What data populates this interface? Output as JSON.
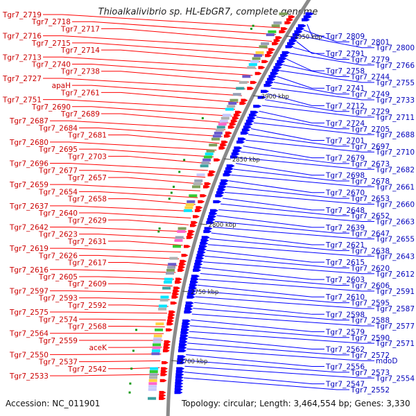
{
  "title": "Thioalkalivibrio sp. HL-EbGR7, complete genome",
  "footer": {
    "accession": "Accession: NC_011901",
    "summary": "Topology: circular; Length: 3,464,554 bp; Genes: 3,330"
  },
  "colors": {
    "forward": "#ff0000",
    "reverse": "#0000ff",
    "backbone": "#8a8a8a"
  },
  "scale_marks": [
    "2950 kbp",
    "2900 kbp",
    "2850 kbp",
    "2800 kbp",
    "2750 kbp",
    "2700 kbp"
  ],
  "labels_left": [
    "Tgr7_2719",
    "Tgr7_2718",
    "Tgr7_2717",
    "Tgr7_2716",
    "Tgr7_2715",
    "Tgr7_2714",
    "Tgr7_2713",
    "Tgr7_2740",
    "Tgr7_2738",
    "Tgr7_2727",
    "apaH",
    "Tgr7_2761",
    "Tgr7_2751",
    "Tgr7_2690",
    "Tgr7_2689",
    "Tgr7_2687",
    "Tgr7_2684",
    "Tgr7_2681",
    "Tgr7_2680",
    "Tgr7_2695",
    "Tgr7_2703",
    "Tgr7_2696",
    "Tgr7_2677",
    "Tgr7_2657",
    "Tgr7_2659",
    "Tgr7_2654",
    "Tgr7_2658",
    "Tgr7_2637",
    "Tgr7_2640",
    "Tgr7_2629",
    "Tgr7_2642",
    "Tgr7_2623",
    "Tgr7_2631",
    "Tgr7_2619",
    "Tgr7_2626",
    "Tgr7_2617",
    "Tgr7_2616",
    "Tgr7_2605",
    "Tgr7_2609",
    "Tgr7_2597",
    "Tgr7_2593",
    "Tgr7_2592",
    "Tgr7_2575",
    "Tgr7_2574",
    "Tgr7_2568",
    "Tgr7_2564",
    "Tgr7_2559",
    "aceK",
    "Tgr7_2550",
    "Tgr7_2537",
    "Tgr7_2542",
    "Tgr7_2533"
  ],
  "labels_right": [
    "Tgr7_2809",
    "Tgr7_2801",
    "Tgr7_2800",
    "Tgr7_2791",
    "Tgr7_2779",
    "Tgr7_2766",
    "Tgr7_2758",
    "Tgr7_2744",
    "Tgr7_2755",
    "Tgr7_2741",
    "Tgr7_2749",
    "Tgr7_2733",
    "Tgr7_2712",
    "Tgr7_2729",
    "Tgr7_2711",
    "Tgr7_2724",
    "Tgr7_2705",
    "Tgr7_2688",
    "Tgr7_2701",
    "Tgr7_2697",
    "Tgr7_2710",
    "Tgr7_2679",
    "Tgr7_2673",
    "Tgr7_2682",
    "Tgr7_2698",
    "Tgr7_2678",
    "Tgr7_2661",
    "Tgr7_2670",
    "Tgr7_2653",
    "Tgr7_2660",
    "Tgr7_2648",
    "Tgr7_2652",
    "Tgr7_2663",
    "Tgr7_2639",
    "Tgr7_2647",
    "Tgr7_2655",
    "Tgr7_2621",
    "Tgr7_2638",
    "Tgr7_2643",
    "Tgr7_2615",
    "Tgr7_2620",
    "Tgr7_2612",
    "Tgr7_2603",
    "Tgr7_2606",
    "Tgr7_2591",
    "Tgr7_2610",
    "Tgr7_2595",
    "Tgr7_2587",
    "Tgr7_2598",
    "Tgr7_2588",
    "Tgr7_2577",
    "Tgr7_2579",
    "Tgr7_2590",
    "Tgr7_2571",
    "Tgr7_2562",
    "Tgr7_2572",
    "mdoD",
    "Tgr7_2556",
    "Tgr7_2573",
    "Tgr7_2554",
    "Tgr7_2547",
    "Tgr7_2552"
  ]
}
